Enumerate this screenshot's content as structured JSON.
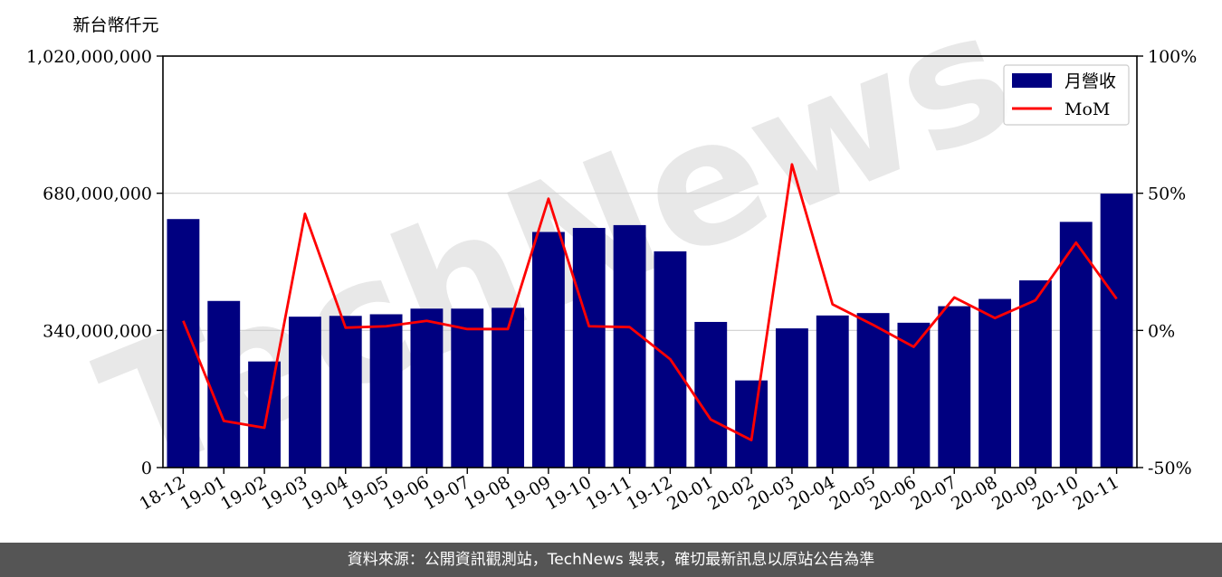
{
  "chart_data": {
    "type": "bar",
    "ylabel": "新台幣仟元",
    "categories": [
      "18-12",
      "19-01",
      "19-02",
      "19-03",
      "19-04",
      "19-05",
      "19-06",
      "19-07",
      "19-08",
      "19-09",
      "19-10",
      "19-11",
      "19-12",
      "20-01",
      "20-02",
      "20-03",
      "20-04",
      "20-05",
      "20-06",
      "20-07",
      "20-08",
      "20-09",
      "20-10",
      "20-11"
    ],
    "series": [
      {
        "name": "月營收",
        "axis": "left",
        "color": "#000080",
        "values": [
          616000000,
          413000000,
          263000000,
          374000000,
          376000000,
          380000000,
          394000000,
          394000000,
          396000000,
          584000000,
          594000000,
          601000000,
          536000000,
          361000000,
          216000000,
          345000000,
          377000000,
          383000000,
          359000000,
          400000000,
          418000000,
          464000000,
          609000000,
          679000000
        ]
      },
      {
        "name": "MoM",
        "axis": "right",
        "type": "line",
        "color": "#ff0000",
        "values": [
          3.5,
          -33,
          -35.5,
          42.5,
          1,
          1.5,
          3.5,
          0.5,
          0.5,
          48,
          1.5,
          1.2,
          -10.5,
          -32.5,
          -40,
          60.5,
          9.5,
          2,
          -6,
          12,
          4.5,
          11,
          32,
          11.5
        ]
      }
    ],
    "left_axis": {
      "ylim": [
        0,
        1020000000
      ],
      "ticks": [
        0,
        340000000,
        680000000,
        1020000000
      ],
      "tick_labels": [
        "0",
        "340,000,000",
        "680,000,000",
        "1,020,000,000"
      ]
    },
    "right_axis": {
      "ylim": [
        -50,
        100
      ],
      "ticks": [
        -50,
        0,
        50,
        100
      ],
      "tick_labels": [
        "-50%",
        "0%",
        "50%",
        "100%"
      ]
    },
    "grid": "horizontal",
    "legend": "top-right",
    "watermark": "TechNews"
  },
  "footer": {
    "text": "資料來源：公開資訊觀測站，TechNews 製表，確切最新訊息以原站公告為準"
  }
}
